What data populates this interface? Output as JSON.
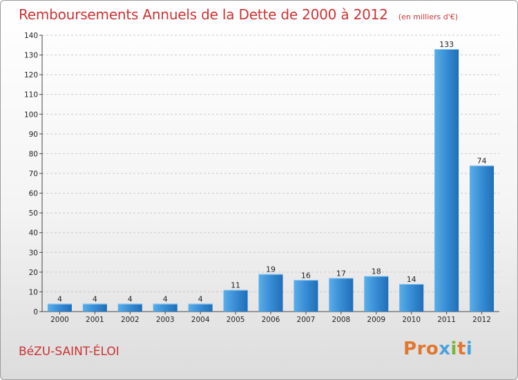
{
  "chart_data": {
    "type": "bar",
    "title": "Remboursements Annuels de la Dette de 2000 à 2012",
    "unit": "(en milliers d'€)",
    "categories": [
      "2000",
      "2001",
      "2002",
      "2003",
      "2004",
      "2005",
      "2006",
      "2007",
      "2008",
      "2009",
      "2010",
      "2011",
      "2012"
    ],
    "values": [
      4,
      4,
      4,
      4,
      4,
      11,
      19,
      16,
      17,
      18,
      14,
      133,
      74
    ],
    "ylim": [
      0,
      140
    ],
    "yticks": [
      0,
      10,
      20,
      30,
      40,
      50,
      60,
      70,
      80,
      90,
      100,
      110,
      120,
      130,
      140
    ],
    "grid": true,
    "bar_color": "#3a8fd6"
  },
  "footer": {
    "commune": "BéZU-SAINT-ÉLOI",
    "brand": "Proxiti",
    "brand_colors": [
      "#e2762f",
      "#e2762f",
      "#e2762f",
      "#4aa3df",
      "#7ab43c",
      "#e2762f",
      "#4aa3df"
    ]
  }
}
